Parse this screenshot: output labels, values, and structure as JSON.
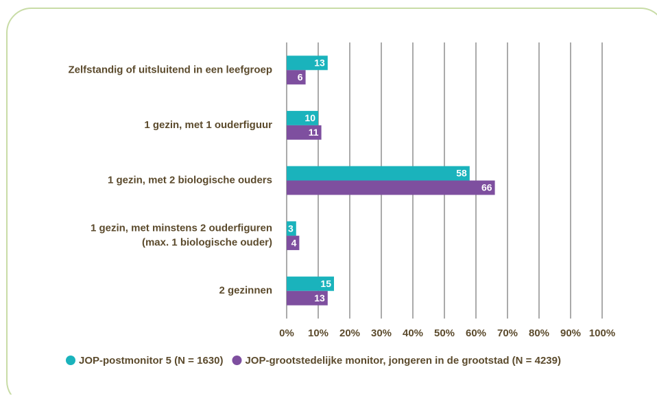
{
  "chart_data": {
    "type": "bar",
    "orientation": "horizontal",
    "categories": [
      "Zelfstandig of uitsluitend in een leefgroep",
      "1 gezin, met 1 ouderfiguur",
      "1 gezin, met 2 biologische ouders",
      "1 gezin, met minstens 2 ouderfiguren\n(max. 1 biologische ouder)",
      "2 gezinnen"
    ],
    "series": [
      {
        "name": "JOP-postmonitor 5 (N = 1630)",
        "color": "#1ab3bc",
        "values": [
          13,
          10,
          58,
          3,
          15
        ]
      },
      {
        "name": "JOP-grootstedelijke monitor, jongeren in de grootstad (N = 4239)",
        "color": "#7e4f9f",
        "values": [
          6,
          11,
          66,
          4,
          13
        ]
      }
    ],
    "xlim": [
      0,
      100
    ],
    "xticks": [
      {
        "value": 0,
        "label": "0%"
      },
      {
        "value": 10,
        "label": "10%"
      },
      {
        "value": 20,
        "label": "20%"
      },
      {
        "value": 30,
        "label": "30%"
      },
      {
        "value": 40,
        "label": "40%"
      },
      {
        "value": 50,
        "label": "50%"
      },
      {
        "value": 60,
        "label": "60%"
      },
      {
        "value": 70,
        "label": "70%"
      },
      {
        "value": 80,
        "label": "80%"
      },
      {
        "value": 90,
        "label": "90%"
      },
      {
        "value": 100,
        "label": "100%"
      }
    ],
    "grid": true,
    "legend": "bottom"
  }
}
